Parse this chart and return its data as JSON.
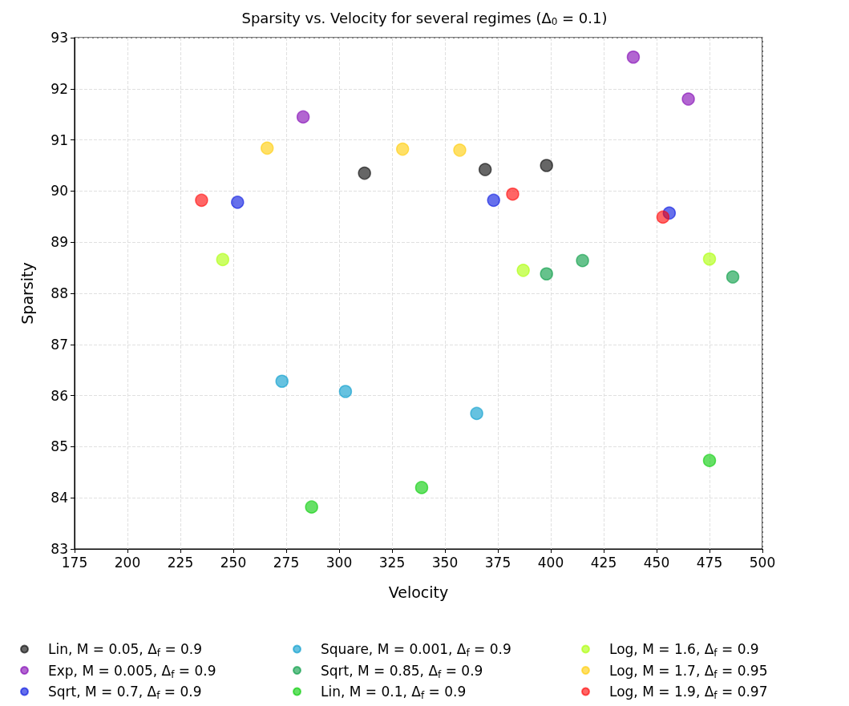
{
  "chart_data": {
    "type": "scatter",
    "title": "Sparsity vs. Velocity for several regimes (Δ$_{0}$ = 0.1)",
    "xlabel": "Velocity",
    "ylabel": "Sparsity",
    "xlim": [
      175,
      500
    ],
    "xticks": [
      175,
      200,
      225,
      250,
      275,
      300,
      325,
      350,
      375,
      400,
      425,
      450,
      475,
      500
    ],
    "ylim": [
      83,
      93
    ],
    "yticks": [
      83,
      84,
      85,
      86,
      87,
      88,
      89,
      90,
      91,
      92,
      93
    ],
    "grid": true,
    "legend": "bottom",
    "marker": "circle",
    "series": [
      {
        "name": "Lin, M = 0.05, Δ$_{f}$ = 0.9",
        "color": "#000000",
        "x": [
          312,
          369,
          398
        ],
        "values": [
          90.35,
          90.42,
          90.5
        ]
      },
      {
        "name": "Exp, M = 0.005, Δ$_{f}$ = 0.9",
        "color": "#7f00b2",
        "x": [
          283,
          439,
          465
        ],
        "values": [
          91.45,
          92.62,
          91.8
        ]
      },
      {
        "name": "Sqrt, M = 0.7, Δ$_{f}$ = 0.9",
        "color": "#0010e0",
        "x": [
          252,
          373,
          456
        ],
        "values": [
          89.78,
          89.82,
          89.57
        ]
      },
      {
        "name": "Square, M = 0.001, Δ$_{f}$ = 0.9",
        "color": "#0099cc",
        "x": [
          273,
          303,
          365
        ],
        "values": [
          86.28,
          86.08,
          85.65
        ]
      },
      {
        "name": "Sqrt, M = 0.85, Δ$_{f}$ = 0.9",
        "color": "#009940",
        "x": [
          398,
          415,
          486
        ],
        "values": [
          88.38,
          88.64,
          88.32
        ]
      },
      {
        "name": "Lin, M = 0.1, Δ$_{f}$ = 0.9",
        "color": "#00cc00",
        "x": [
          287,
          339,
          475
        ],
        "values": [
          83.82,
          84.2,
          84.73
        ]
      },
      {
        "name": "Log, M = 1.6, Δ$_{f}$ = 0.9",
        "color": "#aaff00",
        "x": [
          245,
          387,
          475
        ],
        "values": [
          88.66,
          88.45,
          88.67
        ]
      },
      {
        "name": "Log, M = 1.7, Δ$_{f}$ = 0.95",
        "color": "#ffcc00",
        "x": [
          266,
          330,
          357
        ],
        "values": [
          90.84,
          90.82,
          90.8
        ]
      },
      {
        "name": "Log, M = 1.9, Δ$_{f}$ = 0.97",
        "color": "#ff0000",
        "x": [
          235,
          382,
          453
        ],
        "values": [
          89.82,
          89.94,
          89.49
        ]
      }
    ]
  }
}
